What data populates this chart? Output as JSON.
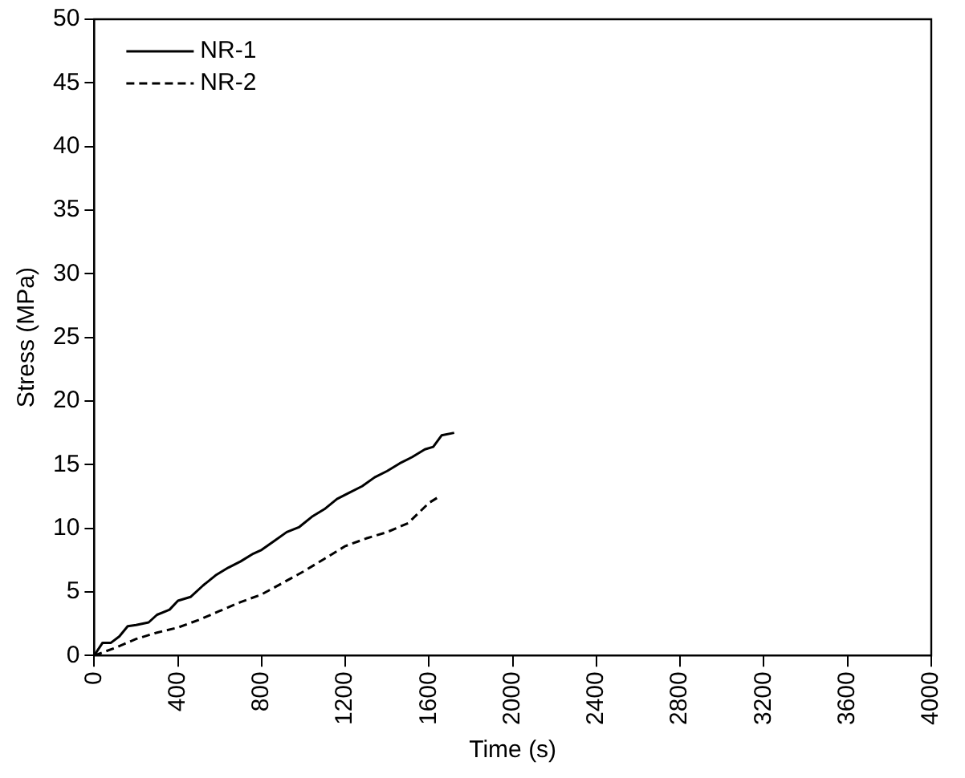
{
  "chart_data": {
    "type": "line",
    "xlabel": "Time (s)",
    "ylabel": "Stress (MPa)",
    "xlim": [
      0,
      4000
    ],
    "xticks": [
      0,
      400,
      800,
      1200,
      1600,
      2000,
      2400,
      2800,
      3200,
      3600,
      4000
    ],
    "ylim": [
      0,
      50
    ],
    "yticks": [
      0,
      5,
      10,
      15,
      20,
      25,
      30,
      35,
      40,
      45,
      50
    ],
    "grid": false,
    "legend": "top left",
    "marker": "none",
    "series": [
      {
        "name": "NR-1",
        "color": "#000000",
        "line_style": "solid",
        "x": [
          0,
          40,
          80,
          120,
          160,
          200,
          260,
          300,
          360,
          400,
          460,
          520,
          580,
          640,
          700,
          760,
          800,
          860,
          920,
          980,
          1040,
          1100,
          1160,
          1220,
          1280,
          1340,
          1400,
          1460,
          1520,
          1580,
          1620,
          1660,
          1720
        ],
        "values": [
          0,
          1.0,
          1.0,
          1.5,
          2.3,
          2.4,
          2.6,
          3.2,
          3.6,
          4.3,
          4.6,
          5.5,
          6.3,
          6.9,
          7.4,
          8.0,
          8.3,
          9.0,
          9.7,
          10.1,
          10.9,
          11.5,
          12.3,
          12.8,
          13.3,
          14.0,
          14.5,
          15.1,
          15.6,
          16.2,
          16.4,
          17.3,
          17.5
        ]
      },
      {
        "name": "NR-2",
        "color": "#000000",
        "line_style": "dashed",
        "x": [
          0,
          100,
          200,
          300,
          400,
          500,
          600,
          700,
          800,
          900,
          1000,
          1100,
          1200,
          1300,
          1400,
          1500,
          1600,
          1650
        ],
        "values": [
          0,
          0.6,
          1.3,
          1.8,
          2.2,
          2.8,
          3.5,
          4.2,
          4.8,
          5.7,
          6.6,
          7.6,
          8.6,
          9.2,
          9.7,
          10.4,
          12.0,
          12.5
        ]
      }
    ]
  }
}
